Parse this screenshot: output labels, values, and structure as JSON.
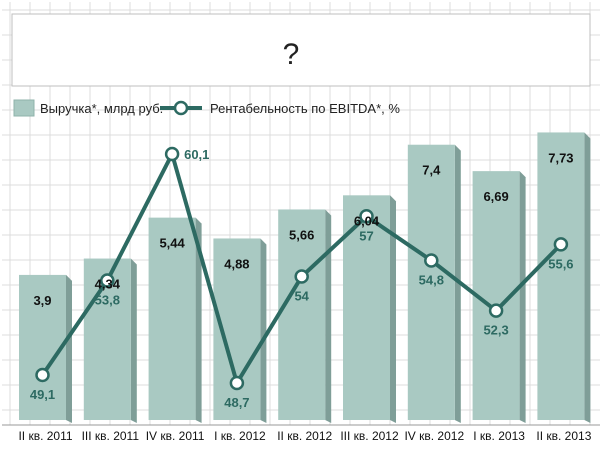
{
  "chart_data": {
    "type": "bar",
    "title": "?",
    "categories": [
      "II кв. 2011",
      "III кв. 2011",
      "IV кв. 2011",
      "I кв. 2012",
      "II кв. 2012",
      "III кв. 2012",
      "IV кв. 2012",
      "I кв. 2013",
      "II кв. 2013"
    ],
    "series": [
      {
        "name": "Выручка*, млрд руб.",
        "type": "bar",
        "values": [
          3.9,
          4.34,
          5.44,
          4.88,
          5.66,
          6.04,
          7.4,
          6.69,
          7.73
        ],
        "labels": [
          "3,9",
          "4,34",
          "5,44",
          "4,88",
          "5,66",
          "6,04",
          "7,4",
          "6,69",
          "7,73"
        ],
        "color": "#a9c9c2"
      },
      {
        "name": "Рентабельность по EBITDA*, %",
        "type": "line",
        "values": [
          49.1,
          53.8,
          60.1,
          48.7,
          54,
          57,
          54.8,
          52.3,
          55.6
        ],
        "labels": [
          "49,1",
          "53,8",
          "60,1",
          "48,7",
          "54",
          "57",
          "54,8",
          "52,3",
          "55,6"
        ],
        "color": "#2d6a62"
      }
    ],
    "bar_axis_range": [
      0,
      8
    ],
    "line_axis_range": [
      46,
      62
    ],
    "grid": true,
    "legend_position": "top-left"
  }
}
